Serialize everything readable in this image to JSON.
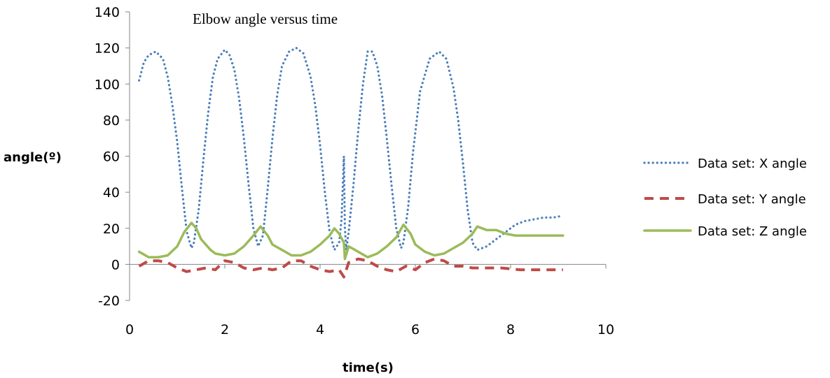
{
  "chart_data": {
    "type": "line",
    "title": "Elbow angle versus time",
    "xlabel": "time(s)",
    "ylabel": "angle(º)",
    "xlim": [
      0,
      10
    ],
    "ylim": [
      -20,
      140
    ],
    "xticks": [
      "0",
      "2",
      "4",
      "6",
      "8",
      "10"
    ],
    "yticks": [
      "-20",
      "0",
      "20",
      "40",
      "60",
      "80",
      "100",
      "120",
      "140"
    ],
    "grid": false,
    "legend_position": "right",
    "series": [
      {
        "name": "Data set: X angle",
        "color": "#4a7ebb",
        "style": "dotted",
        "x": [
          0.2,
          0.3,
          0.4,
          0.55,
          0.7,
          0.8,
          0.9,
          1.0,
          1.1,
          1.2,
          1.3,
          1.35,
          1.45,
          1.55,
          1.65,
          1.75,
          1.85,
          2.0,
          2.1,
          2.2,
          2.3,
          2.4,
          2.5,
          2.6,
          2.7,
          2.8,
          2.9,
          3.0,
          3.1,
          3.2,
          3.35,
          3.5,
          3.65,
          3.8,
          3.9,
          4.0,
          4.1,
          4.2,
          4.3,
          4.4,
          4.45,
          4.5,
          4.52,
          4.55,
          4.6,
          4.7,
          4.8,
          4.9,
          5.0,
          5.1,
          5.2,
          5.3,
          5.4,
          5.5,
          5.6,
          5.7,
          5.75,
          5.85,
          5.95,
          6.1,
          6.3,
          6.5,
          6.65,
          6.8,
          6.9,
          7.0,
          7.1,
          7.2,
          7.3,
          7.5,
          7.7,
          7.9,
          8.1,
          8.3,
          8.5,
          8.7,
          8.9,
          9.1
        ],
        "values": [
          102,
          112,
          116,
          118,
          114,
          104,
          88,
          68,
          42,
          18,
          9,
          12,
          30,
          58,
          84,
          104,
          114,
          119,
          116,
          108,
          92,
          70,
          44,
          20,
          10,
          16,
          42,
          70,
          94,
          110,
          118,
          120,
          117,
          104,
          88,
          66,
          40,
          18,
          8,
          12,
          25,
          60,
          20,
          8,
          18,
          44,
          74,
          100,
          118,
          118,
          110,
          94,
          70,
          44,
          20,
          9,
          12,
          32,
          62,
          96,
          114,
          118,
          114,
          98,
          80,
          56,
          30,
          12,
          8,
          10,
          14,
          18,
          22,
          24,
          25,
          26,
          26,
          27
        ]
      },
      {
        "name": "Data set: Y angle",
        "color": "#be4b48",
        "style": "dashed",
        "x": [
          0.2,
          0.4,
          0.6,
          0.8,
          1.0,
          1.2,
          1.4,
          1.6,
          1.8,
          2.0,
          2.2,
          2.4,
          2.6,
          2.8,
          3.0,
          3.2,
          3.4,
          3.6,
          3.8,
          4.0,
          4.2,
          4.4,
          4.5,
          4.6,
          4.8,
          5.0,
          5.2,
          5.4,
          5.6,
          5.8,
          6.0,
          6.2,
          6.4,
          6.6,
          6.8,
          7.0,
          7.2,
          7.5,
          7.8,
          8.2,
          8.6,
          9.1
        ],
        "values": [
          -1,
          2,
          2,
          1,
          -2,
          -4,
          -3,
          -2,
          -3,
          2,
          1,
          -2,
          -3,
          -2,
          -3,
          -2,
          2,
          2,
          -1,
          -3,
          -4,
          -3,
          -7,
          1,
          3,
          2,
          -1,
          -3,
          -4,
          -1,
          -3,
          1,
          3,
          2,
          -1,
          -1,
          -2,
          -2,
          -2,
          -3,
          -3,
          -3
        ]
      },
      {
        "name": "Data set: Z angle",
        "color": "#9bbb59",
        "style": "solid",
        "x": [
          0.2,
          0.4,
          0.6,
          0.8,
          1.0,
          1.15,
          1.3,
          1.4,
          1.5,
          1.6,
          1.7,
          1.8,
          2.0,
          2.2,
          2.4,
          2.6,
          2.75,
          2.9,
          3.0,
          3.2,
          3.4,
          3.6,
          3.8,
          4.0,
          4.2,
          4.3,
          4.4,
          4.5,
          4.52,
          4.6,
          4.8,
          5.0,
          5.2,
          5.4,
          5.6,
          5.75,
          5.9,
          6.0,
          6.2,
          6.4,
          6.6,
          6.8,
          7.0,
          7.2,
          7.3,
          7.5,
          7.7,
          7.9,
          8.1,
          8.4,
          8.7,
          9.1
        ],
        "values": [
          7,
          4,
          4,
          5,
          10,
          18,
          23,
          20,
          14,
          11,
          8,
          6,
          5,
          6,
          10,
          16,
          21,
          16,
          11,
          8,
          5,
          5,
          7,
          11,
          16,
          20,
          17,
          12,
          3,
          10,
          7,
          4,
          6,
          10,
          15,
          22,
          17,
          11,
          7,
          5,
          6,
          9,
          12,
          17,
          21,
          19,
          19,
          17,
          16,
          16,
          16,
          16
        ]
      }
    ]
  }
}
